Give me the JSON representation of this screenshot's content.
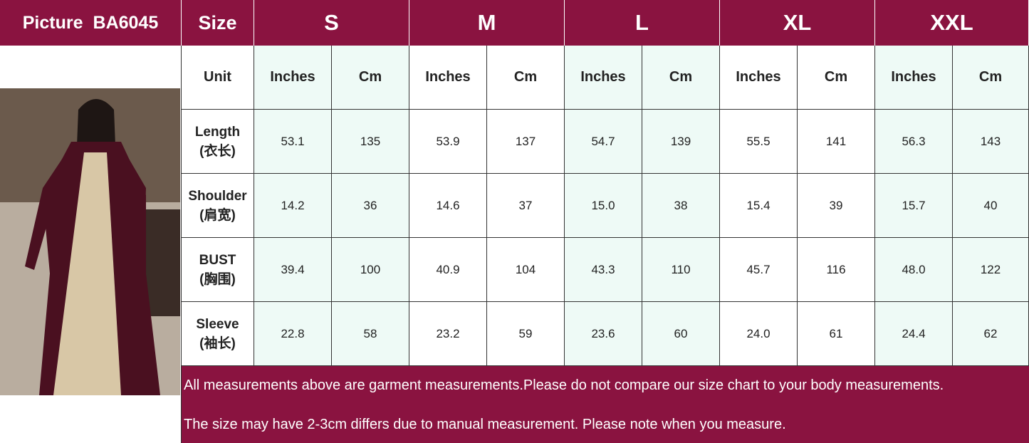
{
  "header": {
    "picture": "Picture",
    "code": "BA6045",
    "size": "Size",
    "sizes": [
      "S",
      "M",
      "L",
      "XL",
      "XXL"
    ]
  },
  "unit_row": {
    "label": "Unit",
    "units": [
      "Inches",
      "Cm"
    ]
  },
  "rows": [
    {
      "label": "Length",
      "cn": "(衣长)",
      "values": [
        "53.1",
        "135",
        "53.9",
        "137",
        "54.7",
        "139",
        "55.5",
        "141",
        "56.3",
        "143"
      ]
    },
    {
      "label": "Shoulder",
      "cn": "(肩宽)",
      "values": [
        "14.2",
        "36",
        "14.6",
        "37",
        "15.0",
        "38",
        "15.4",
        "39",
        "15.7",
        "40"
      ]
    },
    {
      "label": "BUST",
      "cn": "(胸围)",
      "values": [
        "39.4",
        "100",
        "40.9",
        "104",
        "43.3",
        "110",
        "45.7",
        "116",
        "48.0",
        "122"
      ]
    },
    {
      "label": "Sleeve",
      "cn": "(袖长)",
      "values": [
        "22.8",
        "58",
        "23.2",
        "59",
        "23.6",
        "60",
        "24.0",
        "61",
        "24.4",
        "62"
      ]
    }
  ],
  "notes": [
    "All measurements above are garment measurements.Please do not compare our size chart to your body measurements.",
    "The size may have 2-3cm differs due to manual measurement. Please note when you measure."
  ]
}
